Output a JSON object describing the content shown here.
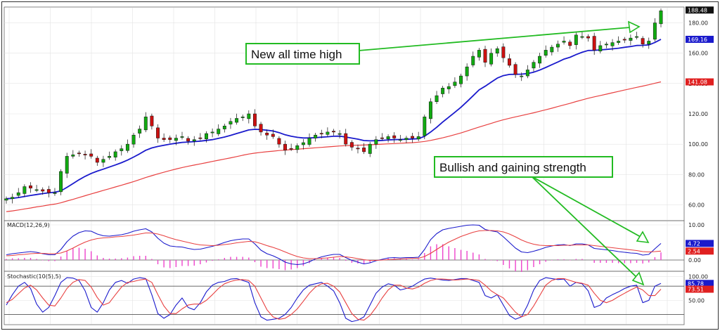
{
  "chart_data": [
    {
      "type": "candlestick",
      "panel": "price",
      "ylim": [
        50,
        190
      ],
      "y_ticks": [
        "180.00",
        "160.00",
        "140.00",
        "120.00",
        "100.00",
        "80.00",
        "60.00"
      ],
      "y_tick_values": [
        180,
        160,
        140,
        120,
        100,
        80,
        60
      ],
      "close_approx": [
        64,
        65,
        68,
        72,
        71,
        70,
        69,
        68,
        68,
        82,
        92,
        93,
        94,
        93,
        92,
        88,
        90,
        92,
        95,
        97,
        100,
        106,
        110,
        118,
        112,
        104,
        103,
        103,
        104,
        105,
        102,
        103,
        104,
        107,
        108,
        110,
        112,
        115,
        117,
        118,
        120,
        112,
        108,
        106,
        105,
        100,
        96,
        97,
        99,
        101,
        104,
        106,
        107,
        108,
        108,
        107,
        100,
        98,
        97,
        95,
        100,
        103,
        104,
        105,
        104,
        103,
        104,
        104,
        105,
        118,
        128,
        132,
        137,
        138,
        141,
        145,
        151,
        158,
        162,
        154,
        160,
        163,
        157,
        152,
        146,
        145,
        149,
        154,
        158,
        162,
        164,
        166,
        168,
        165,
        172,
        171,
        170,
        162,
        165,
        166,
        167,
        168,
        169,
        170,
        171,
        166,
        168,
        180,
        188
      ],
      "series": [
        {
          "name": "",
          "color": "#1a1acc",
          "points": [
            64,
            64.3,
            64.8,
            65.5,
            66.2,
            66.8,
            67.4,
            67.9,
            68.3,
            69.2,
            71.5,
            74,
            76.5,
            78.8,
            80.7,
            82.2,
            83.5,
            84.9,
            86.3,
            87.8,
            89.5,
            91.5,
            93.6,
            96,
            97.5,
            98.5,
            99.3,
            100,
            100.6,
            101.2,
            101.4,
            101.7,
            102,
            102.5,
            103,
            103.8,
            104.7,
            105.8,
            107,
            108.2,
            109.4,
            109.8,
            109.6,
            109.2,
            108.7,
            107.6,
            106.2,
            105.2,
            104.5,
            104.1,
            104.1,
            104.3,
            104.6,
            104.9,
            105.2,
            105.3,
            104.7,
            104,
            103.3,
            102.4,
            102.2,
            102.3,
            102.5,
            102.8,
            103,
            103.1,
            103.2,
            103.4,
            103.6,
            105.2,
            108,
            111.1,
            114.6,
            117.8,
            121,
            124.3,
            128,
            131.9,
            135.8,
            138.2,
            140.9,
            143.6,
            145.2,
            146,
            146.1,
            146.2,
            146.6,
            147.5,
            148.9,
            150.6,
            152.4,
            154.2,
            156.1,
            157.3,
            159.1,
            160.6,
            161.8,
            161.9,
            162.2,
            162.5,
            162.9,
            163.3,
            163.9,
            164.4,
            165.1,
            165.2,
            165.5,
            167.1,
            169.2
          ]
        },
        {
          "name": "",
          "color": "#e84040",
          "points": [
            55.5,
            56,
            56.6,
            57.3,
            57.9,
            58.6,
            59.2,
            59.9,
            60.5,
            61.3,
            62.5,
            63.6,
            64.8,
            66,
            67.2,
            68.3,
            69.5,
            70.6,
            71.8,
            72.9,
            74.1,
            75.3,
            76.6,
            78,
            79.2,
            80.4,
            81.5,
            82.6,
            83.6,
            84.6,
            85.4,
            86.2,
            87,
            87.8,
            88.6,
            89.4,
            90.2,
            91,
            91.8,
            92.7,
            93.5,
            94.1,
            94.6,
            95,
            95.4,
            95.8,
            96.1,
            96.4,
            96.7,
            97,
            97.3,
            97.6,
            97.9,
            98.2,
            98.5,
            98.8,
            99,
            99.2,
            99.3,
            99.4,
            99.6,
            99.8,
            100,
            100.2,
            100.4,
            100.6,
            100.8,
            101,
            101.3,
            101.8,
            102.5,
            103.3,
            104.2,
            105.2,
            106.3,
            107.4,
            108.7,
            110,
            111.3,
            112.5,
            113.7,
            115,
            116.1,
            117.1,
            118,
            118.9,
            119.8,
            120.7,
            121.7,
            122.7,
            123.7,
            124.8,
            125.9,
            126.9,
            128.1,
            129.2,
            130.3,
            131.2,
            132.1,
            133,
            133.9,
            134.8,
            135.7,
            136.6,
            137.5,
            138.3,
            139.2,
            140.2,
            141.1
          ]
        }
      ],
      "price_tags": [
        {
          "label": "188.48",
          "value": 188.48,
          "bg": "#111111"
        },
        {
          "label": "169.16",
          "value": 169.16,
          "bg": "#1a1acc"
        },
        {
          "label": "141.08",
          "value": 141.08,
          "bg": "#e02020"
        }
      ]
    },
    {
      "type": "line",
      "panel": "macd",
      "title": "MACD(12,26,9)",
      "ylim": [
        -3,
        11
      ],
      "y_ticks": [
        "10.00",
        "0.00"
      ],
      "y_tick_values": [
        10,
        0
      ],
      "series": [
        {
          "name": "",
          "color": "#1a1acc",
          "points": [
            1.5,
            1.8,
            2.0,
            2.2,
            2.4,
            2.2,
            1.8,
            1.5,
            1.5,
            3.0,
            5.2,
            6.8,
            7.8,
            8.3,
            8.2,
            7.4,
            6.9,
            6.8,
            7.0,
            7.2,
            7.6,
            8.2,
            8.6,
            8.9,
            8.0,
            6.2,
            4.8,
            4.0,
            3.8,
            3.7,
            3.3,
            3.0,
            3.1,
            3.5,
            3.9,
            4.4,
            5.0,
            5.5,
            5.8,
            6.0,
            6.0,
            4.6,
            2.8,
            1.8,
            1.2,
            0.4,
            -0.6,
            -1.1,
            -1.3,
            -1.1,
            -0.5,
            0.3,
            0.9,
            1.3,
            1.6,
            1.6,
            0.7,
            -0.1,
            -0.6,
            -1.1,
            -0.8,
            -0.2,
            0.2,
            0.6,
            0.7,
            0.6,
            0.7,
            0.7,
            0.8,
            3.0,
            5.8,
            7.5,
            8.6,
            9.0,
            9.3,
            9.6,
            9.9,
            10.0,
            9.9,
            8.7,
            8.3,
            8.0,
            6.6,
            5.0,
            3.4,
            2.3,
            2.1,
            2.5,
            3.0,
            3.6,
            4.0,
            4.3,
            4.4,
            4.1,
            4.6,
            4.6,
            4.3,
            3.3,
            3.1,
            2.9,
            2.7,
            2.4,
            2.2,
            2.0,
            1.9,
            1.4,
            1.6,
            3.2,
            4.72
          ]
        },
        {
          "name": "",
          "color": "#e84040",
          "points": [
            1.2,
            1.3,
            1.5,
            1.6,
            1.8,
            1.9,
            1.9,
            1.8,
            1.8,
            2.0,
            2.6,
            3.4,
            4.3,
            5.1,
            5.7,
            6.1,
            6.3,
            6.4,
            6.6,
            6.7,
            6.9,
            7.1,
            7.4,
            7.7,
            7.7,
            7.4,
            6.9,
            6.3,
            5.8,
            5.4,
            5.0,
            4.6,
            4.3,
            4.2,
            4.1,
            4.2,
            4.4,
            4.6,
            4.9,
            5.1,
            5.3,
            5.2,
            4.7,
            4.1,
            3.6,
            3.0,
            2.3,
            1.6,
            1.0,
            0.6,
            0.4,
            0.4,
            0.5,
            0.6,
            0.8,
            1.0,
            0.9,
            0.7,
            0.4,
            0.1,
            -0.1,
            -0.1,
            0.0,
            0.1,
            0.2,
            0.3,
            0.4,
            0.5,
            0.5,
            1.0,
            1.9,
            3.0,
            4.1,
            5.1,
            5.9,
            6.7,
            7.3,
            7.9,
            8.3,
            8.4,
            8.4,
            8.3,
            8.0,
            7.4,
            6.6,
            5.7,
            5.0,
            4.5,
            4.2,
            4.1,
            4.1,
            4.1,
            4.2,
            4.2,
            4.3,
            4.3,
            4.3,
            4.1,
            3.9,
            3.7,
            3.5,
            3.3,
            3.1,
            2.9,
            2.7,
            2.4,
            2.3,
            2.4,
            2.54
          ]
        }
      ],
      "value_tags": [
        {
          "label": "4.72",
          "value": 4.72,
          "bg": "#1a1acc"
        },
        {
          "label": "2.54",
          "value": 2.54,
          "bg": "#e02020"
        }
      ]
    },
    {
      "type": "line",
      "panel": "stochastic",
      "title": "Stochastic(10(5),5)",
      "ylim": [
        0,
        110
      ],
      "y_ticks": [
        "100.00",
        "50.00"
      ],
      "y_tick_values": [
        100,
        50
      ],
      "levels": [
        80,
        20
      ],
      "series": [
        {
          "name": "",
          "color": "#1a1acc",
          "points": [
            40,
            62,
            80,
            88,
            75,
            42,
            25,
            35,
            60,
            88,
            98,
            97,
            92,
            70,
            35,
            25,
            45,
            72,
            88,
            92,
            86,
            95,
            98,
            96,
            62,
            22,
            12,
            20,
            40,
            55,
            35,
            30,
            45,
            68,
            82,
            88,
            90,
            95,
            96,
            92,
            88,
            45,
            15,
            8,
            10,
            12,
            20,
            35,
            55,
            72,
            82,
            85,
            88,
            80,
            70,
            45,
            12,
            5,
            8,
            15,
            40,
            65,
            78,
            85,
            82,
            72,
            75,
            80,
            88,
            95,
            97,
            95,
            93,
            92,
            94,
            96,
            96,
            92,
            88,
            60,
            55,
            62,
            40,
            18,
            10,
            15,
            40,
            72,
            92,
            98,
            96,
            94,
            95,
            80,
            88,
            85,
            70,
            35,
            40,
            55,
            62,
            68,
            75,
            80,
            82,
            45,
            50,
            80,
            85.78
          ]
        },
        {
          "name": "",
          "color": "#e84040",
          "points": [
            45,
            52,
            64,
            76,
            82,
            72,
            55,
            40,
            38,
            55,
            75,
            88,
            94,
            92,
            78,
            56,
            40,
            45,
            62,
            78,
            88,
            90,
            93,
            95,
            88,
            62,
            38,
            22,
            22,
            32,
            40,
            42,
            42,
            50,
            62,
            75,
            85,
            90,
            93,
            94,
            92,
            80,
            55,
            30,
            15,
            10,
            12,
            20,
            32,
            48,
            65,
            78,
            85,
            86,
            80,
            68,
            45,
            22,
            10,
            8,
            18,
            35,
            55,
            72,
            82,
            82,
            76,
            74,
            78,
            86,
            92,
            95,
            95,
            94,
            93,
            94,
            95,
            94,
            92,
            82,
            70,
            62,
            55,
            40,
            25,
            15,
            20,
            38,
            60,
            82,
            92,
            96,
            96,
            92,
            88,
            86,
            82,
            65,
            50,
            45,
            50,
            58,
            65,
            72,
            78,
            72,
            60,
            60,
            73.51
          ]
        }
      ],
      "value_tags": [
        {
          "label": "85.78",
          "value": 85.78,
          "bg": "#1a1acc"
        },
        {
          "label": "73.51",
          "value": 73.51,
          "bg": "#e02020"
        }
      ]
    }
  ],
  "annotations": {
    "ath_label": "New all time high",
    "bullish_label": "Bullish and gaining strength"
  },
  "colors": {
    "up": "#11aa11",
    "down": "#cc1111",
    "callout_border": "#22bb22",
    "histogram": "#ee44cc"
  }
}
